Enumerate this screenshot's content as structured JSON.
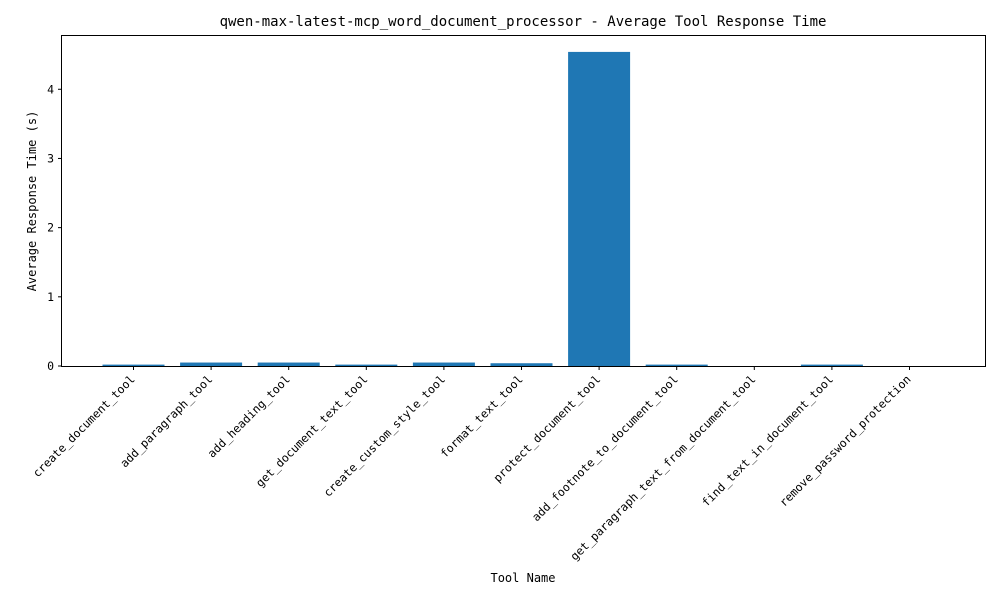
{
  "chart_data": {
    "type": "bar",
    "title": "qwen-max-latest-mcp_word_document_processor - Average Tool Response Time",
    "xlabel": "Tool Name",
    "ylabel": "Average Response Time (s)",
    "categories": [
      "create_document_tool",
      "add_paragraph_tool",
      "add_heading_tool",
      "get_document_text_tool",
      "create_custom_style_tool",
      "format_text_tool",
      "protect_document_tool",
      "add_footnote_to_document_tool",
      "get_paragraph_text_from_document_tool",
      "find_text_in_document_tool",
      "remove_password_protection"
    ],
    "values": [
      0.02,
      0.05,
      0.05,
      0.02,
      0.05,
      0.04,
      4.54,
      0.02,
      0.0,
      0.02,
      0.0
    ],
    "ylim": [
      0,
      4.77
    ],
    "yticks": [
      0,
      1,
      2,
      3,
      4
    ],
    "bar_color": "#1f77b4",
    "grid": false
  }
}
